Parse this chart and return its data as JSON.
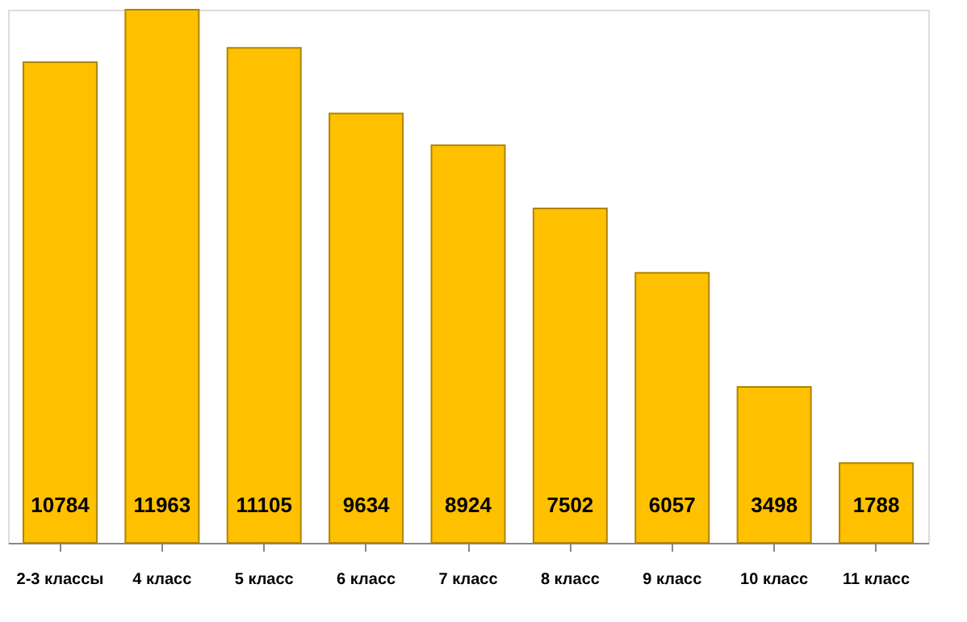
{
  "chart_data": {
    "type": "bar",
    "categories": [
      "2-3 классы",
      "4 класс",
      "5 класс",
      "6 класс",
      "7 класс",
      "8 класс",
      "9 класс",
      "10 класс",
      "11 класс"
    ],
    "values": [
      10784,
      11963,
      11105,
      9634,
      8924,
      7502,
      6057,
      3498,
      1788
    ],
    "color": "#ffc000",
    "data_labels": true,
    "grid": false,
    "tick_labels": "x"
  }
}
